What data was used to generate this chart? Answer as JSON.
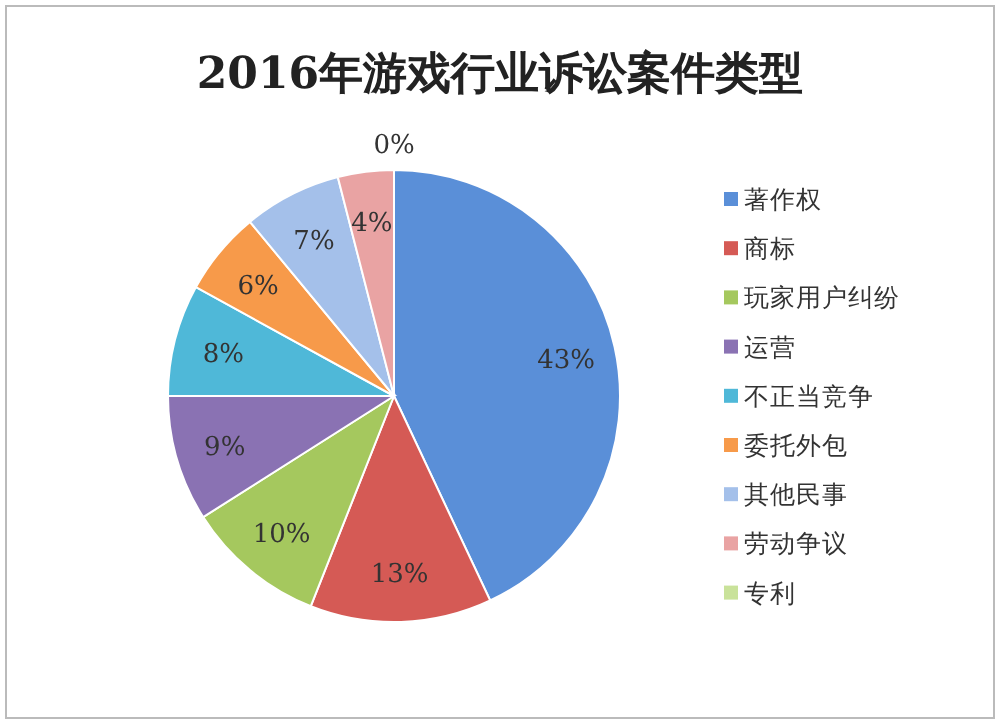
{
  "chart_data": {
    "type": "pie",
    "title": "2016年游戏行业诉讼案件类型",
    "categories": [
      "著作权",
      "商标",
      "玩家用户纠纷",
      "运营",
      "不正当竞争",
      "委托外包",
      "其他民事",
      "劳动争议",
      "专利"
    ],
    "values": [
      43,
      13,
      10,
      9,
      8,
      6,
      7,
      4,
      0
    ],
    "value_labels": [
      "43%",
      "13%",
      "10%",
      "9%",
      "8%",
      "6%",
      "7%",
      "4%",
      "0%"
    ],
    "colors": [
      "#5a8fd8",
      "#d55a55",
      "#a5c85e",
      "#8a72b3",
      "#4fb8d8",
      "#f79a4a",
      "#a4c0ea",
      "#e9a3a3",
      "#c9e29a"
    ],
    "legend": "right"
  }
}
